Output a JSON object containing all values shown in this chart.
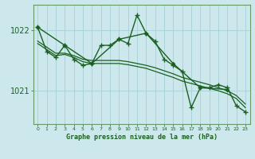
{
  "title": "Graphe pression niveau de la mer (hPa)",
  "background_color": "#cce8ec",
  "grid_color": "#aad4da",
  "line_color": "#1a6020",
  "ylabel_ticks": [
    1021,
    1022
  ],
  "xlim": [
    -0.5,
    23.5
  ],
  "ylim": [
    1020.45,
    1022.42
  ],
  "series": [
    {
      "x": [
        0,
        1,
        2,
        3,
        4,
        5,
        6,
        7,
        8,
        9,
        10,
        11,
        12,
        13,
        14,
        15,
        16,
        17,
        18,
        19,
        20,
        21,
        22,
        23
      ],
      "y": [
        1022.05,
        1021.65,
        1021.55,
        1021.75,
        1021.52,
        1021.42,
        1021.45,
        1021.75,
        1021.75,
        1021.85,
        1021.78,
        1022.25,
        1021.95,
        1021.82,
        1021.52,
        1021.42,
        1021.32,
        1020.72,
        1021.05,
        1021.05,
        1021.1,
        1021.05,
        1020.75,
        1020.65
      ],
      "marker": "+",
      "lw": 1.0
    },
    {
      "x": [
        0,
        1,
        2,
        3,
        4,
        5,
        6,
        7,
        8,
        9,
        10,
        11,
        12,
        13,
        14,
        15,
        16,
        17,
        18,
        19,
        20,
        21,
        22,
        23
      ],
      "y": [
        1021.82,
        1021.72,
        1021.62,
        1021.62,
        1021.58,
        1021.52,
        1021.5,
        1021.5,
        1021.5,
        1021.5,
        1021.48,
        1021.45,
        1021.42,
        1021.38,
        1021.33,
        1021.28,
        1021.22,
        1021.18,
        1021.14,
        1021.1,
        1021.05,
        1021.0,
        1020.92,
        1020.78
      ],
      "marker": null,
      "lw": 0.9
    },
    {
      "x": [
        0,
        1,
        2,
        3,
        4,
        5,
        6,
        7,
        8,
        9,
        10,
        11,
        12,
        13,
        14,
        15,
        16,
        17,
        18,
        19,
        20,
        21,
        22,
        23
      ],
      "y": [
        1021.78,
        1021.68,
        1021.58,
        1021.6,
        1021.55,
        1021.48,
        1021.45,
        1021.45,
        1021.45,
        1021.45,
        1021.43,
        1021.4,
        1021.37,
        1021.32,
        1021.27,
        1021.22,
        1021.16,
        1021.12,
        1021.08,
        1021.04,
        1021.0,
        1020.95,
        1020.87,
        1020.72
      ],
      "marker": null,
      "lw": 0.9
    },
    {
      "x": [
        0,
        3,
        6,
        9,
        12,
        15,
        18,
        21
      ],
      "y": [
        1022.05,
        1021.75,
        1021.45,
        1021.85,
        1021.95,
        1021.45,
        1021.05,
        1021.02
      ],
      "marker": "D",
      "lw": 1.0
    }
  ],
  "figsize": [
    3.2,
    2.0
  ],
  "dpi": 100
}
